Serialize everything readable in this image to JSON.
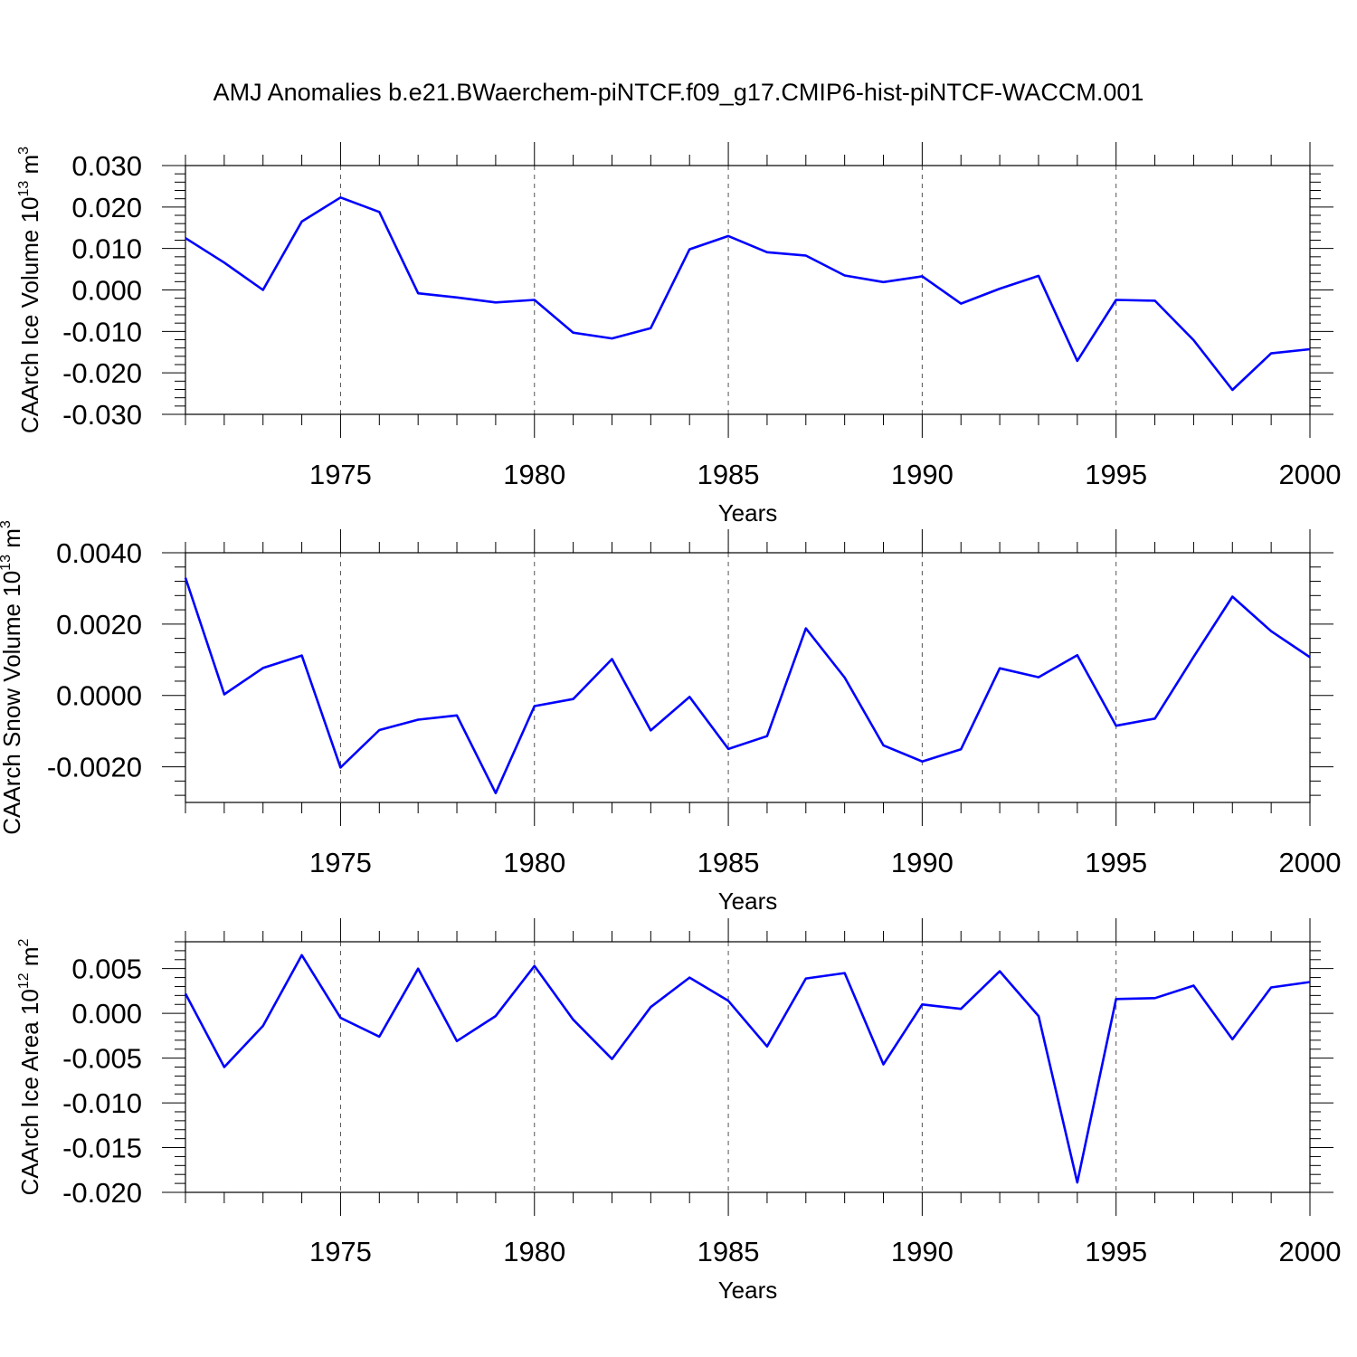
{
  "title": "AMJ Anomalies b.e21.BWaerchem-piNTCF.f09_g17.CMIP6-hist-piNTCF-WACCM.001",
  "colors": {
    "line": "#0000ff",
    "axis": "#000000",
    "grid": "#555555"
  },
  "chart_data": [
    {
      "type": "line",
      "xlabel": "Years",
      "ylabel": {
        "main": "CAArch Ice Volume 10",
        "exp": "13",
        "unit": " m",
        "unit_exp": "3"
      },
      "xlim": [
        1971,
        2000
      ],
      "ylim": [
        -0.03,
        0.03
      ],
      "xticks": [
        1975,
        1980,
        1985,
        1990,
        1995,
        2000
      ],
      "yticks": [
        -0.03,
        -0.02,
        -0.01,
        0.0,
        0.01,
        0.02,
        0.03
      ],
      "ytick_labels": [
        "-0.030",
        "-0.020",
        "-0.010",
        "0.000",
        "0.010",
        "0.020",
        "0.030"
      ],
      "grid": "vertical dashed at major x ticks",
      "x": [
        1971,
        1972,
        1973,
        1974,
        1975,
        1976,
        1977,
        1978,
        1979,
        1980,
        1981,
        1982,
        1983,
        1984,
        1985,
        1986,
        1987,
        1988,
        1989,
        1990,
        1991,
        1992,
        1993,
        1994,
        1995,
        1996,
        1997,
        1998,
        1999,
        2000
      ],
      "y": [
        0.0125,
        0.0066,
        0.0,
        0.0165,
        0.0223,
        0.0188,
        -0.0008,
        -0.0018,
        -0.003,
        -0.0024,
        -0.0103,
        -0.0117,
        -0.0092,
        0.0098,
        0.013,
        0.0091,
        0.0083,
        0.0035,
        0.0019,
        0.0033,
        -0.0033,
        0.0003,
        0.0034,
        -0.0171,
        -0.0024,
        -0.0026,
        -0.0121,
        -0.0241,
        -0.0153,
        -0.0143
      ]
    },
    {
      "type": "line",
      "xlabel": "Years",
      "ylabel": {
        "main": "CAArch Snow Volume 10",
        "exp": "13",
        "unit": " m",
        "unit_exp": "3"
      },
      "xlim": [
        1971,
        2000
      ],
      "ylim": [
        -0.003,
        0.004
      ],
      "xticks": [
        1975,
        1980,
        1985,
        1990,
        1995,
        2000
      ],
      "yticks": [
        -0.002,
        0.0,
        0.002,
        0.004
      ],
      "ytick_labels": [
        "-0.0020",
        "0.0000",
        "0.0020",
        "0.0040"
      ],
      "grid": "vertical dashed at major x ticks",
      "x": [
        1971,
        1972,
        1973,
        1974,
        1975,
        1976,
        1977,
        1978,
        1979,
        1980,
        1981,
        1982,
        1983,
        1984,
        1985,
        1986,
        1987,
        1988,
        1989,
        1990,
        1991,
        1992,
        1993,
        1994,
        1995,
        1996,
        1997,
        1998,
        1999,
        2000
      ],
      "y": [
        0.0033,
        3e-05,
        0.00077,
        0.00112,
        -0.00202,
        -0.00097,
        -0.00068,
        -0.00056,
        -0.00274,
        -0.0003,
        -0.0001,
        0.00102,
        -0.00098,
        -4e-05,
        -0.0015,
        -0.00114,
        0.00188,
        0.0005,
        -0.0014,
        -0.00185,
        -0.00151,
        0.00076,
        0.00051,
        0.00113,
        -0.00085,
        -0.00065,
        0.00108,
        0.00277,
        0.0018,
        0.00107
      ]
    },
    {
      "type": "line",
      "xlabel": "Years",
      "ylabel": {
        "main": "CAArch Ice Area 10",
        "exp": "12",
        "unit": " m",
        "unit_exp": "2"
      },
      "xlim": [
        1971,
        2000
      ],
      "ylim": [
        -0.02,
        0.008
      ],
      "xticks": [
        1975,
        1980,
        1985,
        1990,
        1995,
        2000
      ],
      "yticks": [
        -0.02,
        -0.015,
        -0.01,
        -0.005,
        0.0,
        0.005
      ],
      "ytick_labels": [
        "-0.020",
        "-0.015",
        "-0.010",
        "-0.005",
        "0.000",
        "0.005"
      ],
      "grid": "vertical dashed at major x ticks",
      "x": [
        1971,
        1972,
        1973,
        1974,
        1975,
        1976,
        1977,
        1978,
        1979,
        1980,
        1981,
        1982,
        1983,
        1984,
        1985,
        1986,
        1987,
        1988,
        1989,
        1990,
        1991,
        1992,
        1993,
        1994,
        1995,
        1996,
        1997,
        1998,
        1999,
        2000
      ],
      "y": [
        0.0022,
        -0.006,
        -0.0014,
        0.0065,
        -0.0005,
        -0.0026,
        0.005,
        -0.0031,
        -0.0003,
        0.0053,
        -0.0007,
        -0.0051,
        0.0007,
        0.004,
        0.0014,
        -0.0037,
        0.0039,
        0.0045,
        -0.0057,
        0.001,
        0.0005,
        0.0047,
        -0.0003,
        -0.0189,
        0.0016,
        0.0017,
        0.0031,
        -0.0029,
        0.0029,
        0.0035
      ]
    }
  ]
}
